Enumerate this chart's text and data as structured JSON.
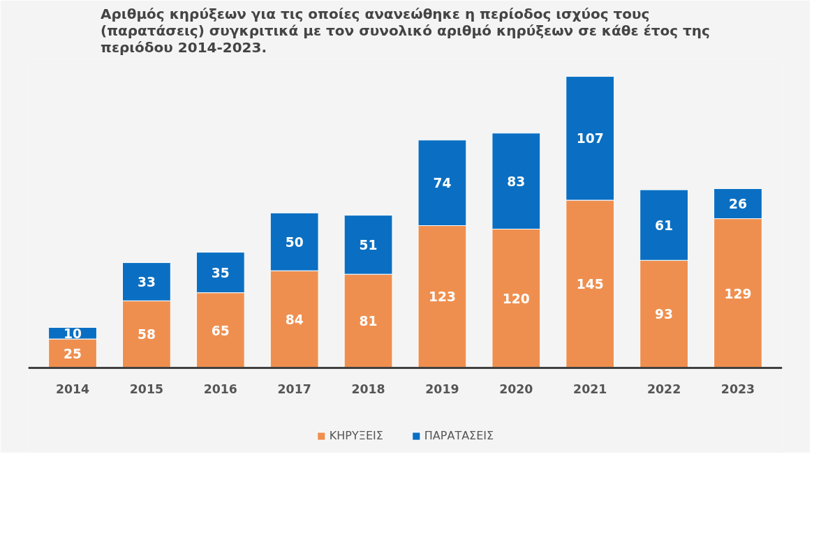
{
  "chart_data": {
    "type": "bar",
    "stacked": true,
    "data_labels": true,
    "grid": false,
    "legend": "bottom",
    "title": "Αριθμός κηρύξεων για τις οποίες ανανεώθηκε η περίοδος ισχύος τους (παρατάσεις) συγκριτικά με τον συνολικό αριθμό κηρύξεων σε κάθε έτος της περιόδου 2014-2023.",
    "categories": [
      "2014",
      "2015",
      "2016",
      "2017",
      "2018",
      "2019",
      "2020",
      "2021",
      "2022",
      "2023"
    ],
    "series": [
      {
        "name": "ΚΗΡΥΞΕΙΣ",
        "color": "#ef8f4f",
        "values": [
          25,
          58,
          65,
          84,
          81,
          123,
          120,
          145,
          93,
          129
        ]
      },
      {
        "name": "ΠΑΡΑΤΑΣΕΙΣ",
        "color": "#0a6fc2",
        "values": [
          10,
          33,
          35,
          50,
          51,
          74,
          83,
          107,
          61,
          26
        ]
      }
    ]
  }
}
